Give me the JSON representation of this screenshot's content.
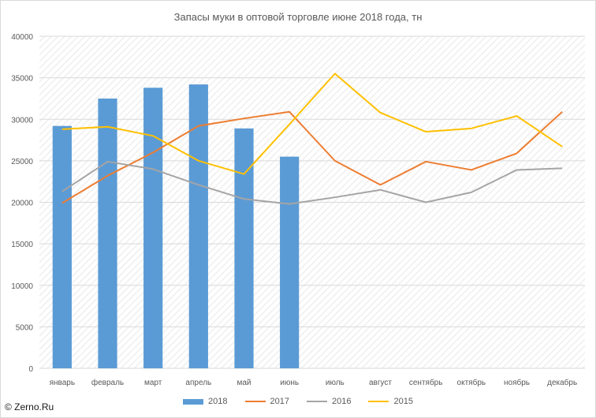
{
  "chart_data": {
    "type": "bar",
    "title": "Запасы муки в оптовой торговле июне 2018 года, тн",
    "categories": [
      "январь",
      "февраль",
      "март",
      "апрель",
      "май",
      "июнь",
      "июль",
      "август",
      "сентябрь",
      "октябрь",
      "ноябрь",
      "декабрь"
    ],
    "ylim": [
      0,
      40000
    ],
    "yticks": [
      0,
      5000,
      10000,
      15000,
      20000,
      25000,
      30000,
      35000,
      40000
    ],
    "grid": true,
    "legend_position": "bottom",
    "series": [
      {
        "name": "2018",
        "type": "bar",
        "color": "#5b9bd5",
        "values": [
          29200,
          32500,
          33800,
          34200,
          28900,
          25500,
          null,
          null,
          null,
          null,
          null,
          null
        ]
      },
      {
        "name": "2017",
        "type": "line",
        "color": "#ed7d31",
        "values": [
          19900,
          23200,
          26000,
          29200,
          30100,
          30900,
          25000,
          22100,
          24900,
          23900,
          25900,
          30900
        ]
      },
      {
        "name": "2016",
        "type": "line",
        "color": "#a5a5a5",
        "values": [
          21300,
          24900,
          24000,
          22100,
          20400,
          19800,
          20600,
          21500,
          20000,
          21200,
          23900,
          24100
        ]
      },
      {
        "name": "2015",
        "type": "line",
        "color": "#ffc000",
        "values": [
          28800,
          29100,
          28000,
          25000,
          23400,
          29400,
          35500,
          30800,
          28500,
          28900,
          30400,
          26700
        ]
      }
    ]
  },
  "watermark": "© Zerno.Ru"
}
